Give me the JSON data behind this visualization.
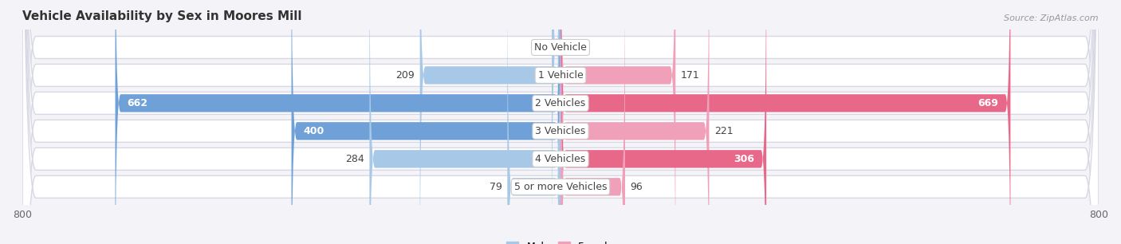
{
  "title": "Vehicle Availability by Sex in Moores Mill",
  "source": "Source: ZipAtlas.com",
  "categories": [
    "No Vehicle",
    "1 Vehicle",
    "2 Vehicles",
    "3 Vehicles",
    "4 Vehicles",
    "5 or more Vehicles"
  ],
  "male_values": [
    13,
    209,
    662,
    400,
    284,
    79
  ],
  "female_values": [
    0,
    171,
    669,
    221,
    306,
    96
  ],
  "male_color_strong": "#6fa0d8",
  "male_color_light": "#a8c8e8",
  "female_color_strong": "#e8688a",
  "female_color_light": "#f0a0b8",
  "bg_color": "#f4f4f8",
  "row_bg_color": "#ebebf2",
  "row_border_color": "#d8d8e4",
  "xlim": [
    -800,
    800
  ],
  "xticks": [
    -800,
    800
  ],
  "title_fontsize": 11,
  "label_fontsize": 9,
  "source_fontsize": 8,
  "legend_fontsize": 9,
  "large_threshold": 300,
  "bar_height": 0.72
}
